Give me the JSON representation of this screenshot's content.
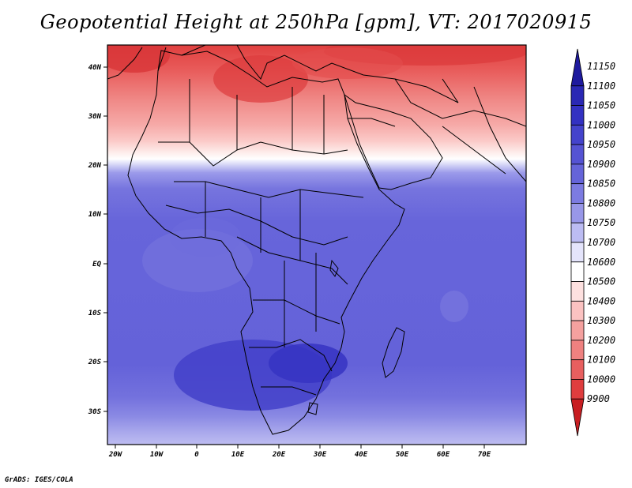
{
  "title": "Geopotential Height at 250hPa [gpm], VT: 2017020915",
  "footer": "GrADS: IGES/COLA",
  "map": {
    "lat_labels": [
      "40N",
      "30N",
      "20N",
      "10N",
      "EQ",
      "10S",
      "20S",
      "30S"
    ],
    "lon_labels": [
      "20W",
      "10W",
      "0",
      "10E",
      "20E",
      "30E",
      "40E",
      "50E",
      "60E",
      "70E"
    ]
  },
  "colorbar": {
    "labels": [
      "11150",
      "11100",
      "11050",
      "11000",
      "10950",
      "10900",
      "10850",
      "10800",
      "10750",
      "10700",
      "10600",
      "10500",
      "10400",
      "10300",
      "10200",
      "10100",
      "10000",
      "9900"
    ],
    "colors": [
      "#1e1a9e",
      "#2a28b4",
      "#3331c2",
      "#4443cc",
      "#5553d3",
      "#6564d9",
      "#7c7be1",
      "#9897e8",
      "#bcbcf2",
      "#e4e4fb",
      "#ffffff",
      "#fde0df",
      "#fbc2c1",
      "#f5a19f",
      "#ef8180",
      "#e85f5f",
      "#df3d3e",
      "#c81e22"
    ]
  }
}
